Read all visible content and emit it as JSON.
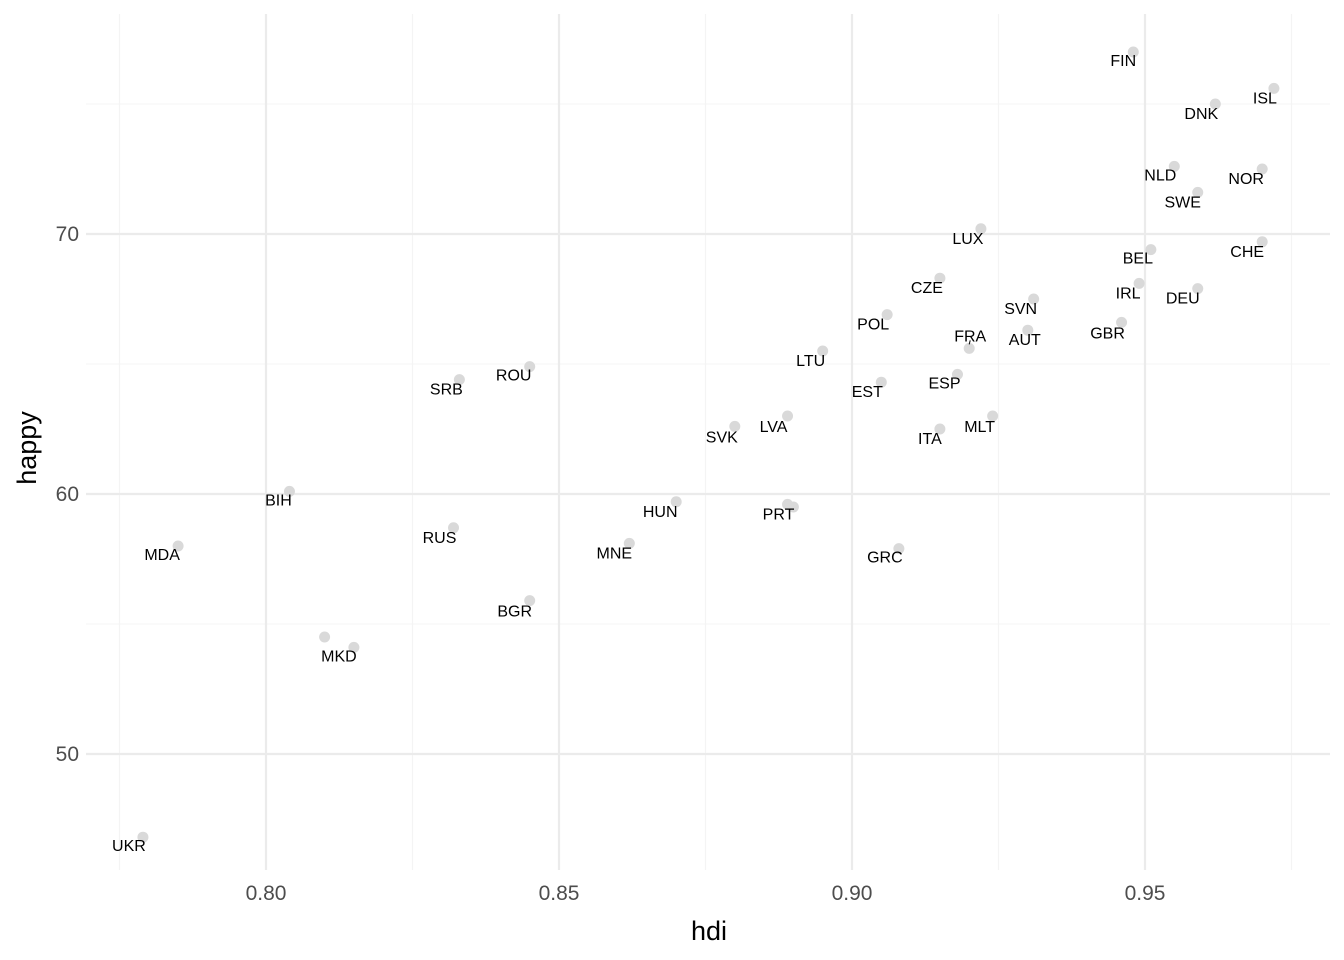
{
  "chart_data": {
    "type": "scatter",
    "title": "",
    "xlabel": "hdi",
    "ylabel": "happy",
    "xlim": [
      0.77,
      0.98
    ],
    "ylim": [
      45.3,
      77.8
    ],
    "x_ticks": [
      0.8,
      0.85,
      0.9,
      0.95
    ],
    "x_tick_labels": [
      "0.80",
      "0.85",
      "0.90",
      "0.95"
    ],
    "y_ticks": [
      50,
      60,
      70
    ],
    "y_tick_labels": [
      "50",
      "60",
      "70"
    ],
    "grid": true,
    "legend": "none",
    "point_color": "#d9d9d9",
    "points": [
      {
        "label": "FIN",
        "x": 0.948,
        "y": 77.0
      },
      {
        "label": "DNK",
        "x": 0.962,
        "y": 75.0
      },
      {
        "label": "ISL",
        "x": 0.972,
        "y": 75.6
      },
      {
        "label": "NLD",
        "x": 0.955,
        "y": 72.6
      },
      {
        "label": "NOR",
        "x": 0.97,
        "y": 72.5
      },
      {
        "label": "SWE",
        "x": 0.959,
        "y": 71.6
      },
      {
        "label": "LUX",
        "x": 0.922,
        "y": 70.2
      },
      {
        "label": "BEL",
        "x": 0.951,
        "y": 69.4
      },
      {
        "label": "CHE",
        "x": 0.97,
        "y": 69.7
      },
      {
        "label": "CZE",
        "x": 0.915,
        "y": 68.3
      },
      {
        "label": "IRL",
        "x": 0.949,
        "y": 68.1
      },
      {
        "label": "DEU",
        "x": 0.959,
        "y": 67.9
      },
      {
        "label": "SVN",
        "x": 0.931,
        "y": 67.5
      },
      {
        "label": "POL",
        "x": 0.906,
        "y": 66.9
      },
      {
        "label": "GBR",
        "x": 0.946,
        "y": 66.6
      },
      {
        "label": "AUT",
        "x": 0.93,
        "y": 66.3
      },
      {
        "label": "FRA",
        "x": 0.92,
        "y": 65.6
      },
      {
        "label": "LTU",
        "x": 0.895,
        "y": 65.5
      },
      {
        "label": "ROU",
        "x": 0.845,
        "y": 64.9
      },
      {
        "label": "ESP",
        "x": 0.918,
        "y": 64.6
      },
      {
        "label": "SRB",
        "x": 0.833,
        "y": 64.4
      },
      {
        "label": "EST",
        "x": 0.905,
        "y": 64.3
      },
      {
        "label": "LVA",
        "x": 0.889,
        "y": 63.0
      },
      {
        "label": "MLT",
        "x": 0.924,
        "y": 63.0
      },
      {
        "label": "SVK",
        "x": 0.88,
        "y": 62.6
      },
      {
        "label": "ITA",
        "x": 0.915,
        "y": 62.5
      },
      {
        "label": "BIH",
        "x": 0.804,
        "y": 60.1
      },
      {
        "label": "HUN",
        "x": 0.87,
        "y": 59.7
      },
      {
        "label": "PRT",
        "x": 0.889,
        "y": 59.6
      },
      {
        "label": "",
        "x": 0.89,
        "y": 59.5
      },
      {
        "label": "RUS",
        "x": 0.832,
        "y": 58.7
      },
      {
        "label": "MNE",
        "x": 0.862,
        "y": 58.1
      },
      {
        "label": "MDA",
        "x": 0.785,
        "y": 58.0
      },
      {
        "label": "GRC",
        "x": 0.908,
        "y": 57.9
      },
      {
        "label": "BGR",
        "x": 0.845,
        "y": 55.9
      },
      {
        "label": "MKD",
        "x": 0.815,
        "y": 54.1
      },
      {
        "label": "",
        "x": 0.81,
        "y": 54.5
      },
      {
        "label": "UKR",
        "x": 0.779,
        "y": 46.8
      }
    ]
  }
}
